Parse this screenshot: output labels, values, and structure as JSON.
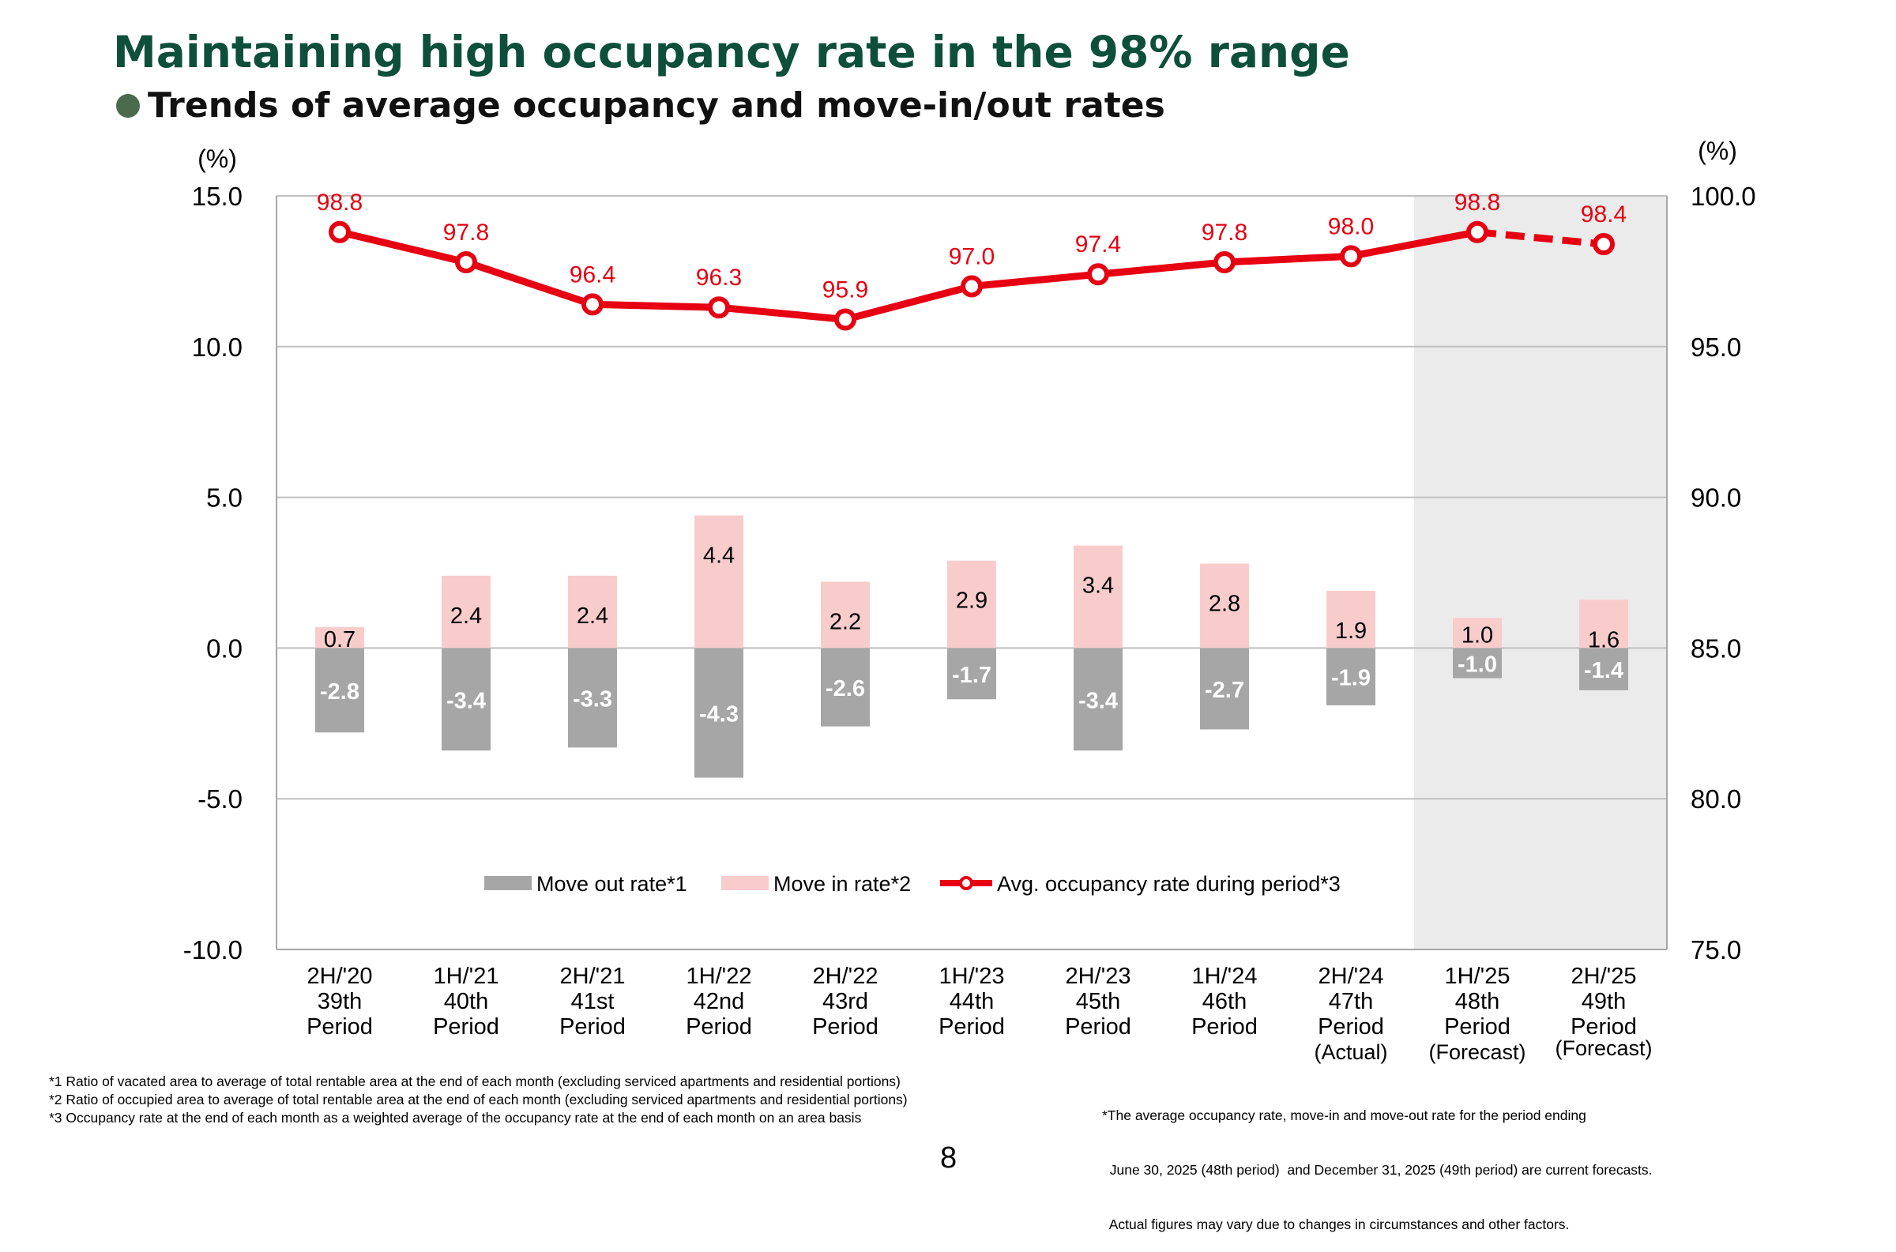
{
  "title": "Maintaining high occupancy rate in the 98% range",
  "subtitle": "Trends of average occupancy and move-in/out rates",
  "chart_data": {
    "type": "bar",
    "categories": [
      [
        "2H/'20",
        "39th",
        "Period"
      ],
      [
        "1H/'21",
        "40th",
        "Period"
      ],
      [
        "2H/'21",
        "41st",
        "Period"
      ],
      [
        "1H/'22",
        "42nd",
        "Period"
      ],
      [
        "2H/'22",
        "43rd",
        "Period"
      ],
      [
        "1H/'23",
        "44th",
        "Period"
      ],
      [
        "2H/'23",
        "45th",
        "Period"
      ],
      [
        "1H/'24",
        "46th",
        "Period"
      ],
      [
        "2H/'24",
        "47th",
        "Period",
        "(Actual)"
      ],
      [
        "1H/'25",
        "48th",
        "Period",
        "(Forecast)"
      ],
      [
        "2H/'25",
        "49th",
        "Period",
        "(Forecast)"
      ]
    ],
    "series": [
      {
        "name": "Move out rate*1",
        "type": "bar",
        "axis": "left",
        "color": "#a6a6a6",
        "values": [
          -2.8,
          -3.4,
          -3.3,
          -4.3,
          -2.6,
          -1.7,
          -3.4,
          -2.7,
          -1.9,
          -1.0,
          -1.4
        ]
      },
      {
        "name": "Move in rate*2",
        "type": "bar",
        "axis": "left",
        "color": "#f9cccc",
        "values": [
          0.7,
          2.4,
          2.4,
          4.4,
          2.2,
          2.9,
          3.4,
          2.8,
          1.9,
          1.0,
          1.6
        ]
      },
      {
        "name": "Avg. occupancy rate during period*3",
        "type": "line",
        "axis": "right",
        "color": "#e60012",
        "values": [
          98.8,
          97.8,
          96.4,
          96.3,
          95.9,
          97.0,
          97.4,
          97.8,
          98.0,
          98.8,
          98.4
        ]
      }
    ],
    "forecast_categories": [
      9,
      10
    ],
    "y_left": {
      "unit": "(%)",
      "range": [
        -10,
        15
      ],
      "ticks": [
        "15.0",
        "10.0",
        "5.0",
        "0.0",
        "-5.0",
        "-10.0"
      ]
    },
    "y_right": {
      "unit": "(%)",
      "range": [
        75,
        100
      ],
      "ticks": [
        "100.0",
        "95.0",
        "90.0",
        "85.0",
        "80.0",
        "75.0"
      ]
    },
    "grid": true,
    "legend": "bottom-center"
  },
  "footnotes": [
    "*1 Ratio of vacated area to average of total rentable area at the end of each month (excluding serviced apartments and residential portions)",
    "*2 Ratio of occupied area to average of total rentable area at the end of each month (excluding serviced apartments and residential portions)",
    "*3 Occupancy rate at the end of each month as a weighted average of the occupancy rate at the end of each month on an area basis"
  ],
  "disclaimer": [
    "*The average occupancy rate, move-in and move-out rate for the period ending",
    "  June 30, 2025 (48th period)  and December 31, 2025 (49th period) are current forecasts.",
    "  Actual figures may vary due to changes in circumstances and other factors."
  ],
  "page_number": "8",
  "colors": {
    "title": "#0d4f3b",
    "bullet": "#4a6b4c",
    "forecast_bg": "#ebebeb",
    "axis_text": "#000000"
  }
}
